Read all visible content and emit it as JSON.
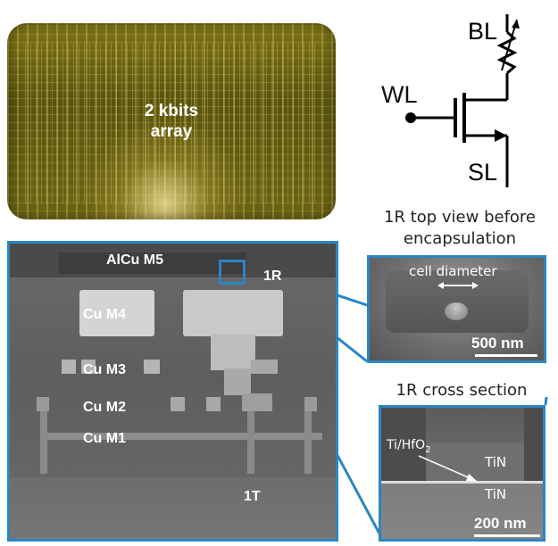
{
  "chip": {
    "label": "2 kbits\narray"
  },
  "schematic": {
    "bitline": "BL",
    "wordline": "WL",
    "sourceline": "SL"
  },
  "captions": {
    "top_view": "1R top view before encapsulation",
    "cross_section": "1R cross section"
  },
  "sem": {
    "layers": {
      "m5": "AlCu M5",
      "m4": "Cu M4",
      "m3": "Cu M3",
      "m2": "Cu M2",
      "m1": "Cu M1"
    },
    "resistor_label": "1R",
    "transistor_label": "1T"
  },
  "top_view_inset": {
    "annotation": "cell diameter",
    "scale": "500 nm"
  },
  "cross_section_inset": {
    "material_prefix": "Ti/HfO",
    "material_subscript": "2",
    "top_electrode": "TiN",
    "bottom_electrode": "TiN",
    "scale": "200 nm"
  },
  "colors": {
    "frame": "#2a86c1",
    "chip": "#6b6415",
    "sem": "#666666"
  }
}
